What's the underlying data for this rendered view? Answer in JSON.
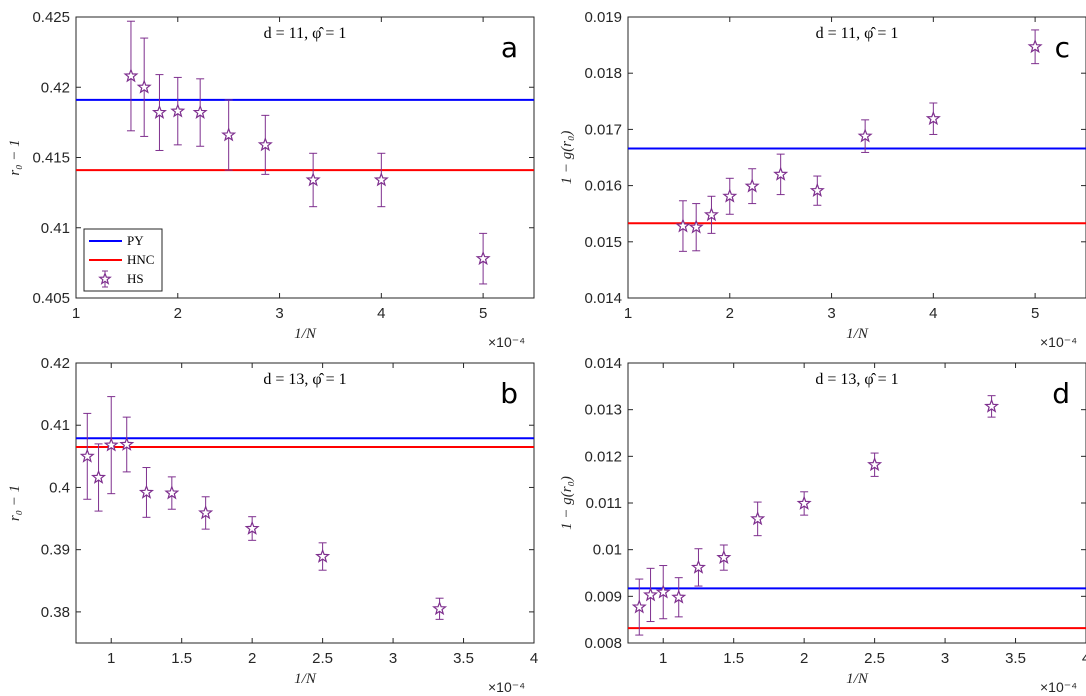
{
  "legend": {
    "entries": [
      {
        "label": "PY",
        "color": "#0000ff",
        "kind": "line"
      },
      {
        "label": "HNC",
        "color": "#ff0000",
        "kind": "line"
      },
      {
        "label": "HS",
        "color": "#7e2f8e",
        "kind": "errorbar-star"
      }
    ],
    "placement": "bottom-left of panel a"
  },
  "chart_data": [
    {
      "id": "a",
      "type": "scatter",
      "panel_label": "a",
      "annotation": "d = 11, φ̂ = 1",
      "xlabel": "1/N",
      "ylabel": "r₀ − 1",
      "x_multiplier": "×10⁻⁴",
      "xlim": [
        1,
        5.5
      ],
      "ylim": [
        0.405,
        0.425
      ],
      "xticks": [
        1,
        2,
        3,
        4,
        5
      ],
      "yticks": [
        0.405,
        0.41,
        0.415,
        0.42,
        0.425
      ],
      "ytick_labels": [
        "0.405",
        "0.41",
        "0.415",
        "0.42",
        "0.425"
      ],
      "grid": false,
      "reference_lines": [
        {
          "name": "PY",
          "y": 0.4191,
          "color": "#0000ff"
        },
        {
          "name": "HNC",
          "y": 0.4141,
          "color": "#ff0000"
        }
      ],
      "series": [
        {
          "name": "HS",
          "color": "#7e2f8e",
          "x": [
            1.54,
            1.67,
            1.82,
            2.0,
            2.22,
            2.5,
            2.86,
            3.33,
            4.0,
            5.0
          ],
          "y": [
            0.4208,
            0.42,
            0.4182,
            0.4183,
            0.4182,
            0.4166,
            0.4159,
            0.4134,
            0.4134,
            0.4078
          ],
          "err": [
            0.0039,
            0.0035,
            0.0027,
            0.0024,
            0.0024,
            0.0025,
            0.0021,
            0.0019,
            0.0019,
            0.0018
          ]
        }
      ]
    },
    {
      "id": "c",
      "type": "scatter",
      "panel_label": "c",
      "annotation": "d = 11, φ̂ = 1",
      "xlabel": "1/N",
      "ylabel": "1 − g(r₀)",
      "x_multiplier": "×10⁻⁴",
      "xlim": [
        1,
        5.5
      ],
      "ylim": [
        0.014,
        0.019
      ],
      "xticks": [
        1,
        2,
        3,
        4,
        5
      ],
      "yticks": [
        0.014,
        0.015,
        0.016,
        0.017,
        0.018,
        0.019
      ],
      "ytick_labels": [
        "0.014",
        "0.015",
        "0.016",
        "0.017",
        "0.018",
        "0.019"
      ],
      "grid": false,
      "reference_lines": [
        {
          "name": "PY",
          "y": 0.01666,
          "color": "#0000ff"
        },
        {
          "name": "HNC",
          "y": 0.01533,
          "color": "#ff0000"
        }
      ],
      "series": [
        {
          "name": "HS",
          "color": "#7e2f8e",
          "x": [
            1.54,
            1.67,
            1.82,
            2.0,
            2.22,
            2.5,
            2.86,
            3.33,
            4.0,
            5.0
          ],
          "y": [
            0.01528,
            0.01526,
            0.01548,
            0.01581,
            0.01599,
            0.0162,
            0.01591,
            0.01688,
            0.01719,
            0.01847
          ],
          "err": [
            0.00045,
            0.00042,
            0.00033,
            0.00032,
            0.00031,
            0.00036,
            0.00026,
            0.00029,
            0.00028,
            0.0003
          ]
        }
      ]
    },
    {
      "id": "b",
      "type": "scatter",
      "panel_label": "b",
      "annotation": "d = 13, φ̂ = 1",
      "xlabel": "1/N",
      "ylabel": "r₀ − 1",
      "x_multiplier": "×10⁻⁴",
      "xlim": [
        0.75,
        4
      ],
      "ylim": [
        0.375,
        0.42
      ],
      "xticks": [
        1,
        1.5,
        2,
        2.5,
        3,
        3.5,
        4
      ],
      "yticks": [
        0.38,
        0.39,
        0.4,
        0.41,
        0.42
      ],
      "ytick_labels": [
        "0.38",
        "0.39",
        "0.4",
        "0.41",
        "0.42"
      ],
      "grid": false,
      "reference_lines": [
        {
          "name": "PY",
          "y": 0.4079,
          "color": "#0000ff"
        },
        {
          "name": "HNC",
          "y": 0.4065,
          "color": "#ff0000"
        }
      ],
      "series": [
        {
          "name": "HS",
          "color": "#7e2f8e",
          "x": [
            0.83,
            0.91,
            1.0,
            1.11,
            1.25,
            1.43,
            1.67,
            2.0,
            2.5,
            3.33
          ],
          "y": [
            0.405,
            0.4016,
            0.4068,
            0.4069,
            0.3992,
            0.3991,
            0.3959,
            0.3934,
            0.3889,
            0.3805
          ],
          "err": [
            0.0069,
            0.0054,
            0.0078,
            0.0044,
            0.004,
            0.0026,
            0.0026,
            0.0019,
            0.0022,
            0.0017
          ]
        }
      ]
    },
    {
      "id": "d",
      "type": "scatter",
      "panel_label": "d",
      "annotation": "d = 13, φ̂ = 1",
      "xlabel": "1/N",
      "ylabel": "1 − g(r₀)",
      "x_multiplier": "×10⁻⁴",
      "xlim": [
        0.75,
        4
      ],
      "ylim": [
        0.008,
        0.014
      ],
      "xticks": [
        1,
        1.5,
        2,
        2.5,
        3,
        3.5,
        4
      ],
      "yticks": [
        0.008,
        0.009,
        0.01,
        0.011,
        0.012,
        0.013,
        0.014
      ],
      "ytick_labels": [
        "0.008",
        "0.009",
        "0.01",
        "0.011",
        "0.012",
        "0.013",
        "0.014"
      ],
      "grid": false,
      "reference_lines": [
        {
          "name": "PY",
          "y": 0.00917,
          "color": "#0000ff"
        },
        {
          "name": "HNC",
          "y": 0.00832,
          "color": "#ff0000"
        }
      ],
      "series": [
        {
          "name": "HS",
          "color": "#7e2f8e",
          "x": [
            0.83,
            0.91,
            1.0,
            1.11,
            1.25,
            1.43,
            1.67,
            2.0,
            2.5,
            3.33
          ],
          "y": [
            0.00877,
            0.00903,
            0.00909,
            0.00898,
            0.00962,
            0.00983,
            0.01066,
            0.01099,
            0.01182,
            0.01307
          ],
          "err": [
            0.0006,
            0.00057,
            0.00057,
            0.00042,
            0.0004,
            0.00027,
            0.00036,
            0.00025,
            0.00025,
            0.00023
          ]
        }
      ]
    }
  ]
}
